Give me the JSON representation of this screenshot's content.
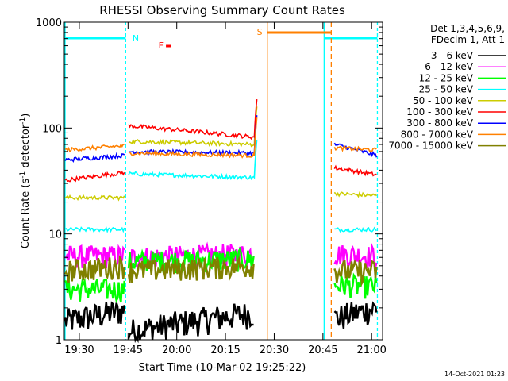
{
  "chart_data": {
    "type": "line",
    "title": "RHESSI Observing Summary Count Rates",
    "xlabel": "Start Time (10-Mar-02 19:25:22)",
    "ylabel_main": "Count Rate (s",
    "ylabel_sup1": "-1",
    "ylabel_mid": " detector",
    "ylabel_sup2": "-1",
    "ylabel_end": ")",
    "yscale": "log",
    "ylim": [
      1,
      1000
    ],
    "xlim_minutes": [
      0,
      98
    ],
    "x_ticks": [
      {
        "label": "19:30",
        "minute": 4.63
      },
      {
        "label": "19:45",
        "minute": 19.63
      },
      {
        "label": "20:00",
        "minute": 34.63
      },
      {
        "label": "20:15",
        "minute": 49.63
      },
      {
        "label": "20:30",
        "minute": 64.63
      },
      {
        "label": "20:45",
        "minute": 79.63
      },
      {
        "label": "21:00",
        "minute": 94.63
      }
    ],
    "y_ticks": [
      {
        "label": "1",
        "value": 1
      },
      {
        "label": "10",
        "value": 10
      },
      {
        "label": "100",
        "value": 100
      },
      {
        "label": "1000",
        "value": 1000
      }
    ],
    "legend_header": [
      "Det 1,3,4,5,6,9,",
      "FDecim 1, Att 1"
    ],
    "legend_position": "top-right",
    "series": [
      {
        "name": "3 - 6 keV",
        "color": "#000000"
      },
      {
        "name": "6 - 12 keV",
        "color": "#ff00ff"
      },
      {
        "name": "12 - 25 keV",
        "color": "#00ff00"
      },
      {
        "name": "25 - 50 keV",
        "color": "#00ffff"
      },
      {
        "name": "50 - 100 keV",
        "color": "#cccc00"
      },
      {
        "name": "100 - 300 keV",
        "color": "#ff0000"
      },
      {
        "name": "300 - 800 keV",
        "color": "#0000ff"
      },
      {
        "name": "800 - 7000 keV",
        "color": "#ff8000"
      },
      {
        "name": "7000 - 15000 keV",
        "color": "#808000"
      }
    ],
    "flags": {
      "night_label": "N",
      "saa_label": "S",
      "flare_label": "F",
      "night_color": "#00ffff",
      "saa_color": "#ff8000",
      "flare_color": "#ff0000"
    },
    "timestamp": "14-Oct-2021 01:23"
  }
}
